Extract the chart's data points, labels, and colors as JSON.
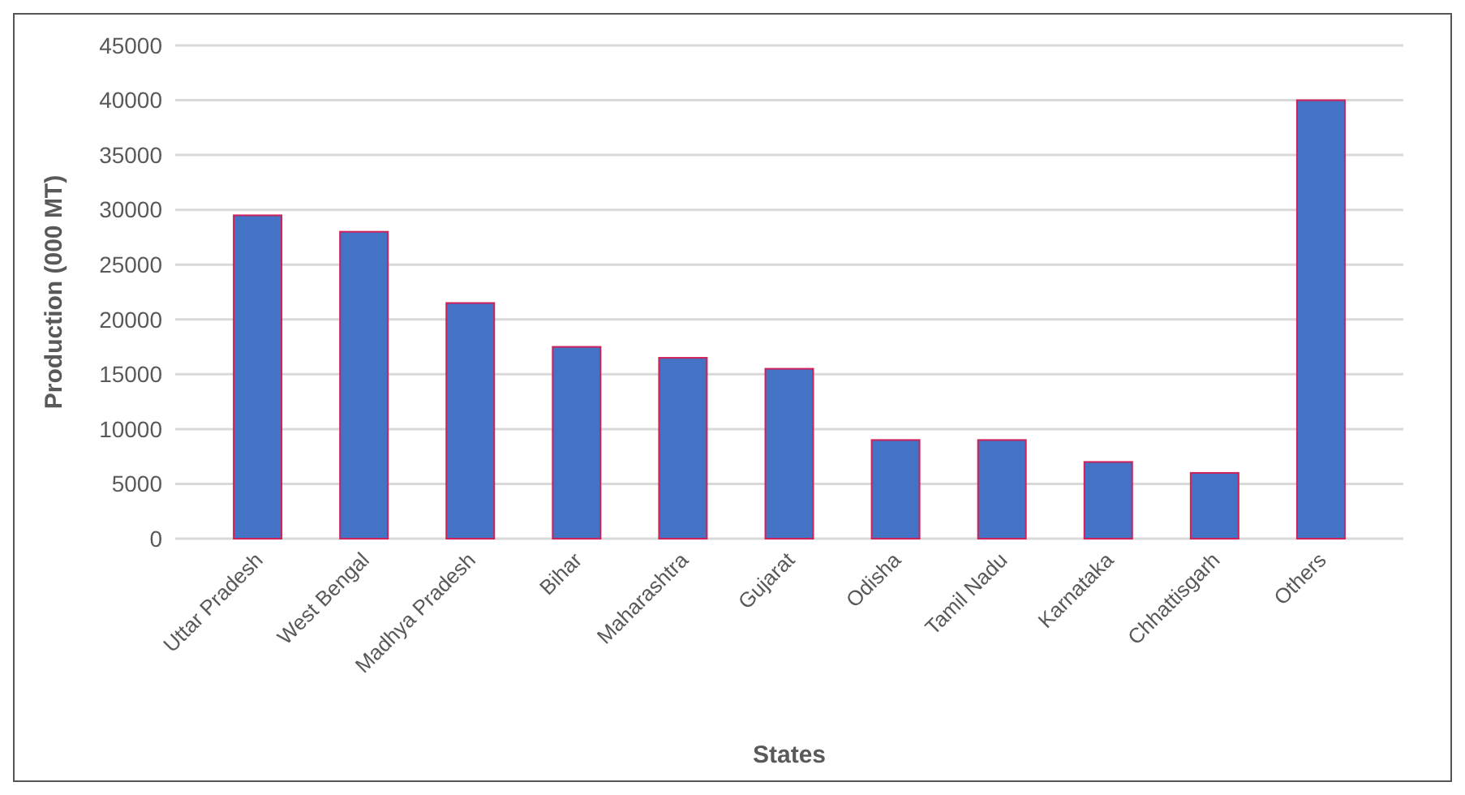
{
  "chart_data": {
    "type": "bar",
    "xlabel": "States",
    "ylabel": "Production (000 MT)",
    "categories": [
      "Uttar Pradesh",
      "West Bengal",
      "Madhya Pradesh",
      "Bihar",
      "Maharashtra",
      "Gujarat",
      "Odisha",
      "Tamil Nadu",
      "Karnataka",
      "Chhattisgarh",
      "Others"
    ],
    "values": [
      29500,
      28000,
      21500,
      17500,
      16500,
      15500,
      9000,
      9000,
      7000,
      6000,
      40000
    ],
    "color": "#4472c4",
    "ylim": [
      0,
      45000
    ],
    "yticks": [
      0,
      5000,
      10000,
      15000,
      20000,
      25000,
      30000,
      35000,
      40000,
      45000
    ],
    "grid": "y"
  }
}
